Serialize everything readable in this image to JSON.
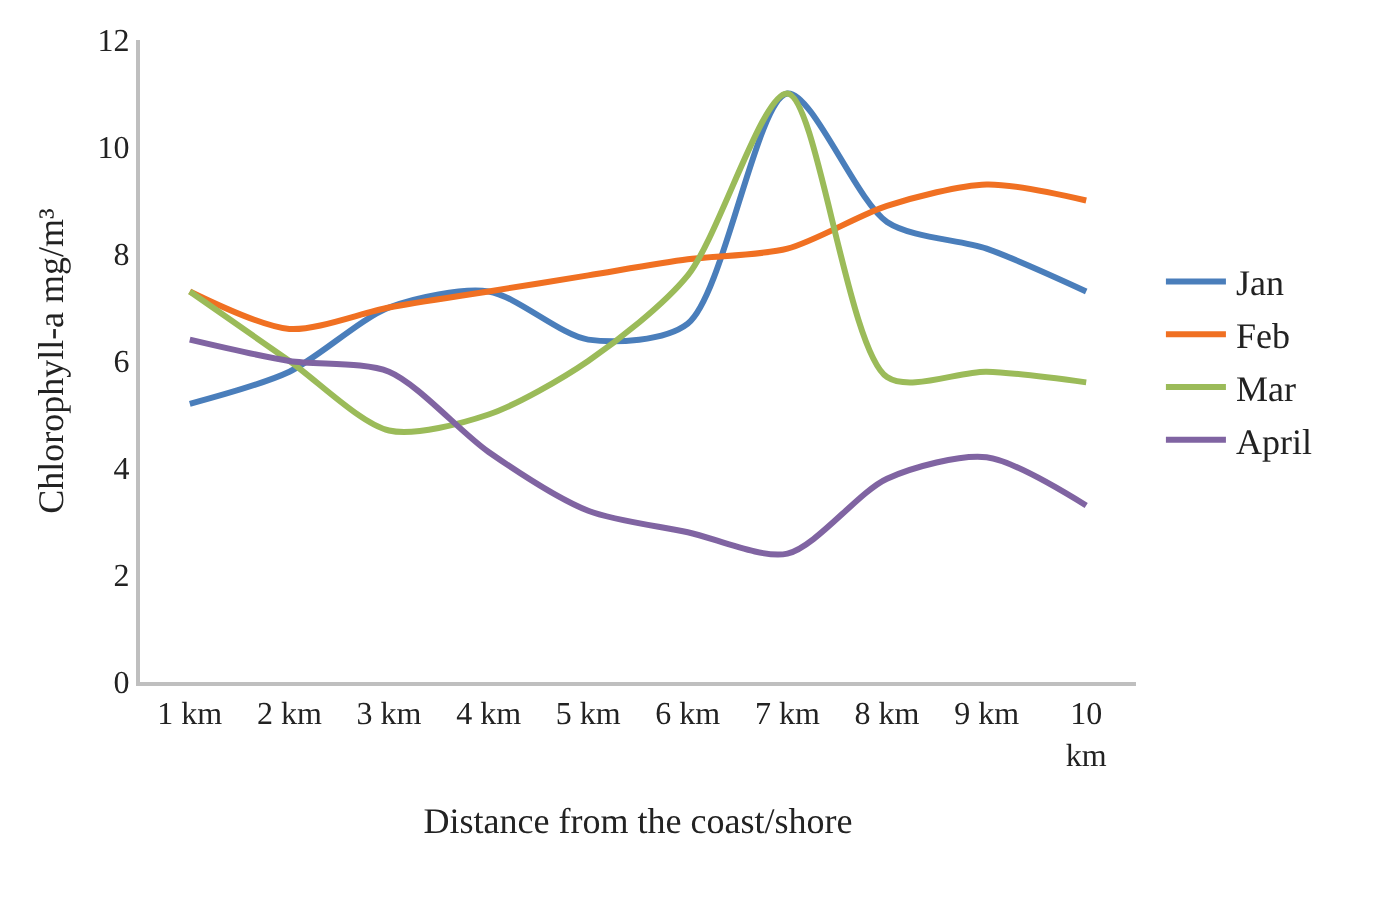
{
  "chart_data": {
    "type": "line",
    "xlabel": "Distance from the coast/shore",
    "ylabel": "Chlorophyll-a mg/m³",
    "categories": [
      "1 km",
      "2 km",
      "3 km",
      "4 km",
      "5 km",
      "6 km",
      "7 km",
      "8 km",
      "9 km",
      "10 km"
    ],
    "series": [
      {
        "name": "Jan",
        "color": "#4a7ebb",
        "values": [
          5.2,
          5.8,
          7.0,
          7.3,
          6.4,
          6.7,
          11.0,
          8.6,
          8.1,
          7.3
        ]
      },
      {
        "name": "Feb",
        "color": "#f07022",
        "values": [
          7.3,
          6.6,
          7.0,
          7.3,
          7.6,
          7.9,
          8.1,
          8.9,
          9.3,
          9.0
        ]
      },
      {
        "name": "Mar",
        "color": "#9bbb59",
        "values": [
          7.3,
          6.0,
          4.7,
          5.0,
          6.0,
          7.6,
          11.0,
          5.7,
          5.8,
          5.6
        ]
      },
      {
        "name": "April",
        "color": "#8064a2",
        "values": [
          6.4,
          6.0,
          5.8,
          4.3,
          3.2,
          2.8,
          2.4,
          3.8,
          4.2,
          3.3
        ]
      }
    ],
    "ylim": [
      0,
      12
    ],
    "yticks": [
      0,
      2,
      4,
      6,
      8,
      10,
      12
    ],
    "grid": false,
    "legend": "right",
    "marker": "none",
    "line_style": "solid"
  }
}
